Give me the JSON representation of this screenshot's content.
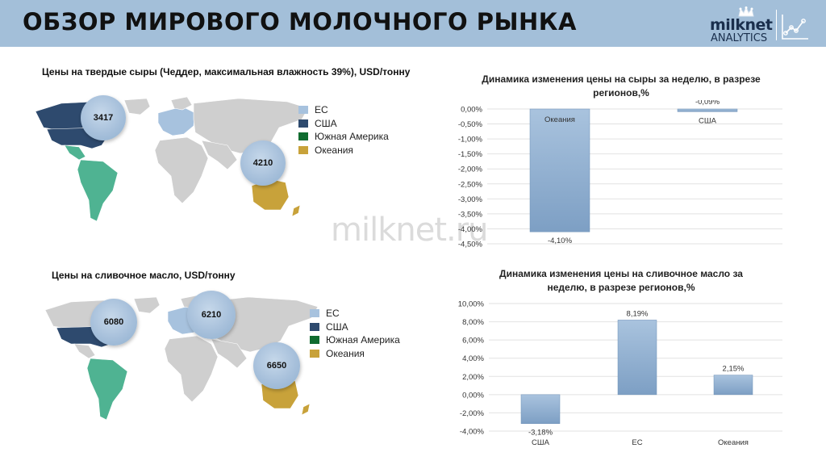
{
  "header": {
    "title": "ОБЗОР МИРОВОГО МОЛОЧНОГО РЫНКА",
    "logo_word": "milknet",
    "logo_sub": "ANALYTICS",
    "bg_color": "#a3bfd9"
  },
  "watermark": "milknet.ru",
  "legend_items": [
    {
      "label": "ЕС",
      "color": "#a7c2de"
    },
    {
      "label": "США",
      "color": "#2e4a6e"
    },
    {
      "label": "Южная Америка",
      "color": "#0f6b2f"
    },
    {
      "label": "Океания",
      "color": "#c8a23a"
    }
  ],
  "cheese_map": {
    "title": "Цены на твердые сыры (Чеддер, максимальная влажность 39%), USD/тонну",
    "bubbles": [
      {
        "region": "США",
        "value": "3417"
      },
      {
        "region": "Океания",
        "value": "4210"
      }
    ]
  },
  "butter_map": {
    "title": "Цены на сливочное масло, USD/тонну",
    "bubbles": [
      {
        "region": "США",
        "value": "6080"
      },
      {
        "region": "ЕС",
        "value": "6210"
      },
      {
        "region": "Океания",
        "value": "6650"
      }
    ]
  },
  "chart_data": [
    {
      "type": "bar",
      "title": "Динамика изменения цены на сыры за неделю, в разрезе регионов,%",
      "categories": [
        "Океания",
        "США"
      ],
      "values": [
        -4.1,
        -0.09
      ],
      "value_labels": [
        "-4,10%",
        "-0,09%"
      ],
      "ylim": [
        -4.5,
        0
      ],
      "ticks": [
        0,
        -0.5,
        -1.0,
        -1.5,
        -2.0,
        -2.5,
        -3.0,
        -3.5,
        -4.0,
        -4.5
      ],
      "tick_labels": [
        "0,00%",
        "-0,50%",
        "-1,00%",
        "-1,50%",
        "-2,00%",
        "-2,50%",
        "-3,00%",
        "-3,50%",
        "-4,00%",
        "-4,50%"
      ],
      "category_label_position": "inside-top",
      "grid": true,
      "bar_color": "#8eaed0"
    },
    {
      "type": "bar",
      "title": "Динамика изменения цены на сливочное масло за неделю, в разрезе регионов,%",
      "categories": [
        "США",
        "ЕС",
        "Океания"
      ],
      "values": [
        -3.18,
        8.19,
        2.15
      ],
      "value_labels": [
        "-3,18%",
        "8,19%",
        "2,15%"
      ],
      "ylim": [
        -4,
        10
      ],
      "ticks": [
        10,
        8,
        6,
        4,
        2,
        0,
        -2,
        -4
      ],
      "tick_labels": [
        "10,00%",
        "8,00%",
        "6,00%",
        "4,00%",
        "2,00%",
        "0,00%",
        "-2,00%",
        "-4,00%"
      ],
      "category_label_position": "bottom",
      "grid": true,
      "bar_color": "#8eaed0"
    }
  ]
}
